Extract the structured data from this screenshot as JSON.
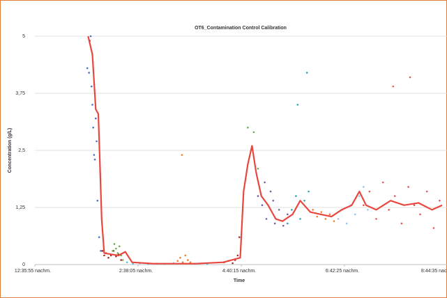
{
  "chart_data": {
    "type": "scatter",
    "title": "OT6_Contamination Control Calibration",
    "x_label": "Time",
    "y_label": "Concentration (g/L)",
    "xlim": [
      "12:35:55",
      "20:44:35"
    ],
    "xticks": [
      {
        "value": "12:35:55",
        "label": "12:35:55 nachm."
      },
      {
        "value": "14:38:05",
        "label": "2:38:05 nachm."
      },
      {
        "value": "16:40:15",
        "label": "4:40:15 nachm."
      },
      {
        "value": "18:42:25",
        "label": "6:42:25 nachm."
      },
      {
        "value": "20:44:35",
        "label": "8:44:35 nachm."
      }
    ],
    "ylim": [
      0,
      5
    ],
    "yticks": [
      0,
      {
        "value": 1.25,
        "label": "1,25"
      },
      {
        "value": 2.5,
        "label": "2,5"
      },
      {
        "value": 3.75,
        "label": "3,75"
      },
      5
    ],
    "grid": true,
    "series": [
      {
        "color": "#4472c4",
        "x": [
          "13:38",
          "13:40",
          "13:41",
          "13:43",
          "13:44",
          "13:45",
          "13:46",
          "13:47",
          "13:48",
          "13:49",
          "13:50",
          "13:52",
          "13:54",
          "13:42"
        ],
        "values": [
          4.3,
          4.2,
          4.9,
          3.9,
          3.5,
          3.0,
          2.4,
          2.3,
          3.2,
          2.7,
          1.4,
          0.6,
          0.3,
          5.0
        ]
      },
      {
        "color": "#a52a2a",
        "x": [
          "13:56",
          "13:58",
          "14:00",
          "14:03",
          "14:06",
          "14:09",
          "14:12",
          "14:15",
          "14:18",
          "16:20",
          "16:25",
          "16:30",
          "16:33",
          "16:36",
          "16:38"
        ],
        "values": [
          0.3,
          0.2,
          0.25,
          0.15,
          0.2,
          0.3,
          0.18,
          0.22,
          0.1,
          0.05,
          0.08,
          0.03,
          0.1,
          0.2,
          0.6
        ]
      },
      {
        "color": "#70ad47",
        "x": [
          "14:08",
          "14:10",
          "14:12",
          "14:14",
          "14:16",
          "14:18",
          "14:20",
          "16:48",
          "16:55",
          "17:00"
        ],
        "values": [
          0.3,
          0.45,
          0.35,
          0.25,
          0.4,
          0.2,
          0.1,
          3.0,
          2.9,
          2.1
        ]
      },
      {
        "color": "#5bc0de",
        "x": [
          "14:25",
          "14:32",
          "14:40",
          "14:50",
          "15:00",
          "15:10",
          "15:20",
          "15:45",
          "16:00"
        ],
        "values": [
          0.05,
          0.02,
          0.03,
          0.01,
          0.02,
          0.01,
          0.03,
          0.02,
          0.01
        ]
      },
      {
        "color": "#ed7d31",
        "x": [
          "15:25",
          "15:28",
          "15:31",
          "15:34",
          "15:37",
          "15:40",
          "15:30",
          "18:05",
          "18:10",
          "18:15",
          "18:20",
          "18:25",
          "18:30"
        ],
        "values": [
          0.08,
          0.15,
          0.05,
          0.2,
          0.1,
          0.05,
          2.4,
          1.2,
          1.05,
          1.15,
          1.0,
          1.1,
          0.95
        ]
      },
      {
        "color": "#7a5ba8",
        "x": [
          "17:00",
          "17:05",
          "17:10",
          "17:15",
          "17:20",
          "17:25",
          "17:30",
          "17:35",
          "17:08",
          "17:18"
        ],
        "values": [
          1.5,
          1.3,
          1.0,
          1.6,
          0.9,
          1.2,
          0.85,
          1.1,
          1.8,
          1.4
        ]
      },
      {
        "color": "#2aa5b8",
        "x": [
          "17:35",
          "17:40",
          "17:45",
          "17:50",
          "17:55",
          "18:00",
          "17:47",
          "17:58"
        ],
        "values": [
          0.9,
          1.2,
          1.5,
          1.0,
          1.4,
          1.6,
          3.5,
          4.2
        ]
      },
      {
        "color": "#9dc3e6",
        "x": [
          "18:35",
          "18:40",
          "18:45",
          "18:50",
          "18:55",
          "19:00",
          "19:05",
          "19:10"
        ],
        "values": [
          1.0,
          1.2,
          0.9,
          1.3,
          1.1,
          1.5,
          1.7,
          1.2
        ]
      },
      {
        "color": "#e05a5a",
        "x": [
          "19:05",
          "19:12",
          "19:20",
          "19:28",
          "19:35",
          "19:42",
          "19:50",
          "19:58",
          "20:05",
          "20:12",
          "20:20",
          "20:28",
          "20:35",
          "19:40",
          "20:00"
        ],
        "values": [
          1.3,
          1.6,
          1.0,
          1.8,
          1.2,
          1.5,
          0.9,
          1.7,
          1.3,
          1.1,
          1.6,
          0.8,
          1.4,
          3.9,
          4.1
        ]
      },
      {
        "type": "line",
        "color": "#e8473f",
        "x": [
          "13:39",
          "13:44",
          "13:48",
          "13:51",
          "13:55",
          "13:58",
          "14:15",
          "14:23",
          "14:31",
          "14:56",
          "15:46",
          "16:19",
          "16:39",
          "16:43",
          "16:48",
          "16:53",
          "16:58",
          "17:04",
          "17:12",
          "17:21",
          "17:29",
          "17:41",
          "17:50",
          "18:02",
          "18:14",
          "18:27",
          "18:39",
          "18:51",
          "19:00",
          "19:08",
          "19:20",
          "19:37",
          "19:53",
          "20:10",
          "20:26",
          "20:38"
        ],
        "values": [
          5,
          4.6,
          3.4,
          3.3,
          1.0,
          0.25,
          0.2,
          0.28,
          0.05,
          0.02,
          0.02,
          0.05,
          0.15,
          1.6,
          2.2,
          2.6,
          2.0,
          1.5,
          1.3,
          1.0,
          0.95,
          1.1,
          1.4,
          1.15,
          1.1,
          1.05,
          1.2,
          1.3,
          1.6,
          1.3,
          1.2,
          1.4,
          1.3,
          1.35,
          1.2,
          1.3
        ]
      }
    ]
  }
}
